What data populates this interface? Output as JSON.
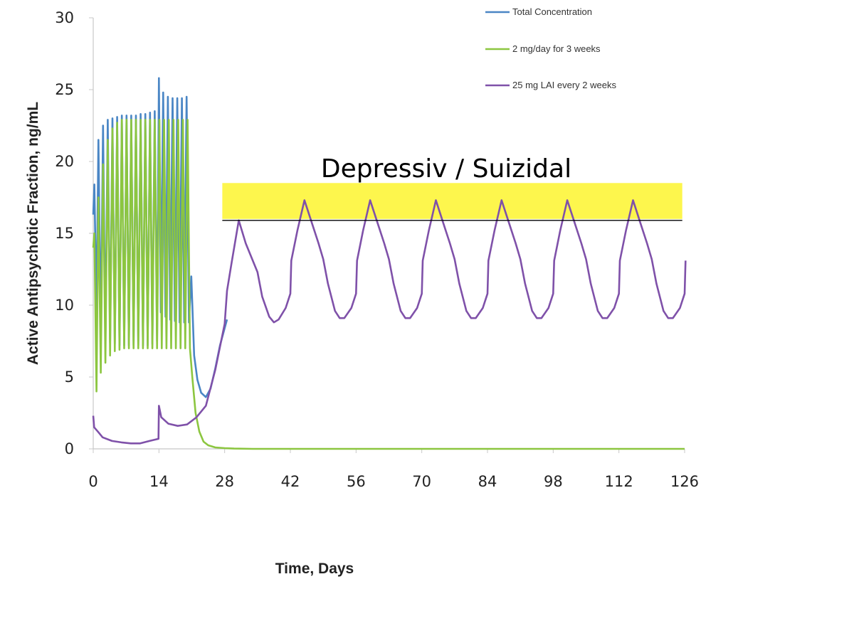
{
  "chart_data": {
    "type": "line",
    "title": "",
    "xlabel": "Time, Days",
    "ylabel": "Active Antipsychotic Fraction, ng/mL",
    "xlim": [
      0,
      126
    ],
    "ylim": [
      0,
      30
    ],
    "x_ticks": [
      0,
      14,
      28,
      42,
      56,
      70,
      84,
      98,
      112,
      126
    ],
    "y_ticks": [
      0,
      5,
      10,
      15,
      20,
      25,
      30
    ],
    "grid": false,
    "legend_position": "top-right",
    "series": [
      {
        "name": "Total Concentration",
        "color": "#4a86c5",
        "points": [
          [
            0,
            16.3
          ],
          [
            0.25,
            18.4
          ],
          [
            0.7,
            9.5
          ],
          [
            1.1,
            21.5
          ],
          [
            1.6,
            8.0
          ],
          [
            2.1,
            22.5
          ],
          [
            2.6,
            7.5
          ],
          [
            3.1,
            22.9
          ],
          [
            3.6,
            7.4
          ],
          [
            4.1,
            23.0
          ],
          [
            4.6,
            7.3
          ],
          [
            5.1,
            23.1
          ],
          [
            5.6,
            7.2
          ],
          [
            6.1,
            23.2
          ],
          [
            6.6,
            7.2
          ],
          [
            7.1,
            23.2
          ],
          [
            7.6,
            7.2
          ],
          [
            8.1,
            23.2
          ],
          [
            8.6,
            7.2
          ],
          [
            9.1,
            23.2
          ],
          [
            9.6,
            7.2
          ],
          [
            10.1,
            23.3
          ],
          [
            10.6,
            7.2
          ],
          [
            11.1,
            23.3
          ],
          [
            11.6,
            7.2
          ],
          [
            12.1,
            23.4
          ],
          [
            12.6,
            7.3
          ],
          [
            13.1,
            23.5
          ],
          [
            13.6,
            7.5
          ],
          [
            14.0,
            25.8
          ],
          [
            14.4,
            9.5
          ],
          [
            14.9,
            24.8
          ],
          [
            15.4,
            9.2
          ],
          [
            15.9,
            24.5
          ],
          [
            16.4,
            9.0
          ],
          [
            16.9,
            24.4
          ],
          [
            17.4,
            8.9
          ],
          [
            17.9,
            24.4
          ],
          [
            18.4,
            8.8
          ],
          [
            18.9,
            24.4
          ],
          [
            19.4,
            8.8
          ],
          [
            19.9,
            24.5
          ],
          [
            20.4,
            8.8
          ],
          [
            20.9,
            12.0
          ],
          [
            21.5,
            6.5
          ],
          [
            22.2,
            4.8
          ],
          [
            23.0,
            3.9
          ],
          [
            24.0,
            3.6
          ],
          [
            25.0,
            4.2
          ],
          [
            26.0,
            5.6
          ],
          [
            27.0,
            7.2
          ],
          [
            28.0,
            8.4
          ],
          [
            28.5,
            9.0
          ]
        ]
      },
      {
        "name": "2 mg/day for 3 weeks",
        "color": "#8cc640",
        "points": [
          [
            0,
            14.0
          ],
          [
            0.25,
            15.0
          ],
          [
            0.7,
            4.0
          ],
          [
            1.1,
            17.5
          ],
          [
            1.6,
            5.3
          ],
          [
            2.1,
            19.8
          ],
          [
            2.6,
            6.0
          ],
          [
            3.1,
            21.5
          ],
          [
            3.6,
            6.5
          ],
          [
            4.1,
            22.3
          ],
          [
            4.6,
            6.8
          ],
          [
            5.1,
            22.7
          ],
          [
            5.6,
            6.9
          ],
          [
            6.1,
            22.9
          ],
          [
            6.6,
            7.0
          ],
          [
            7.1,
            22.9
          ],
          [
            7.6,
            7.0
          ],
          [
            8.1,
            22.9
          ],
          [
            8.6,
            7.0
          ],
          [
            9.1,
            22.9
          ],
          [
            9.6,
            7.0
          ],
          [
            10.1,
            22.9
          ],
          [
            10.6,
            7.0
          ],
          [
            11.1,
            22.9
          ],
          [
            11.6,
            7.0
          ],
          [
            12.1,
            22.9
          ],
          [
            12.6,
            7.0
          ],
          [
            13.1,
            22.9
          ],
          [
            13.6,
            7.0
          ],
          [
            14.1,
            22.9
          ],
          [
            14.6,
            7.0
          ],
          [
            15.1,
            22.9
          ],
          [
            15.6,
            7.0
          ],
          [
            16.1,
            22.9
          ],
          [
            16.6,
            7.0
          ],
          [
            17.1,
            22.9
          ],
          [
            17.6,
            7.0
          ],
          [
            18.1,
            22.9
          ],
          [
            18.6,
            7.0
          ],
          [
            19.1,
            22.9
          ],
          [
            19.6,
            7.0
          ],
          [
            20.1,
            22.9
          ],
          [
            20.6,
            7.0
          ],
          [
            21.1,
            5.0
          ],
          [
            21.8,
            2.5
          ],
          [
            22.6,
            1.2
          ],
          [
            23.5,
            0.5
          ],
          [
            24.5,
            0.25
          ],
          [
            26.0,
            0.1
          ],
          [
            28.0,
            0.05
          ],
          [
            30.0,
            0.02
          ],
          [
            34.0,
            0
          ],
          [
            126,
            0
          ]
        ]
      },
      {
        "name": "25 mg LAI every 2 weeks",
        "color": "#7f51a9",
        "points": [
          [
            0,
            2.3
          ],
          [
            0.2,
            1.5
          ],
          [
            1,
            1.2
          ],
          [
            2,
            0.8
          ],
          [
            4,
            0.55
          ],
          [
            6,
            0.45
          ],
          [
            8,
            0.38
          ],
          [
            10,
            0.38
          ],
          [
            12,
            0.55
          ],
          [
            13.9,
            0.7
          ],
          [
            14.0,
            3.0
          ],
          [
            14.5,
            2.2
          ],
          [
            16,
            1.75
          ],
          [
            18,
            1.6
          ],
          [
            20,
            1.7
          ],
          [
            22,
            2.2
          ],
          [
            24,
            3.0
          ],
          [
            26,
            5.5
          ],
          [
            28,
            8.7
          ],
          [
            28.5,
            11.0
          ],
          [
            29.5,
            13.0
          ],
          [
            31.0,
            15.9
          ],
          [
            32.5,
            14.3
          ],
          [
            34.0,
            13.1
          ],
          [
            35.0,
            12.3
          ],
          [
            36.0,
            10.6
          ],
          [
            37.5,
            9.2
          ],
          [
            38.5,
            8.8
          ],
          [
            39.5,
            9.0
          ],
          [
            41.0,
            9.8
          ],
          [
            42.0,
            10.8
          ],
          [
            42.2,
            13.1
          ],
          [
            43.5,
            15.2
          ],
          [
            45.0,
            17.3
          ],
          [
            46.5,
            15.8
          ],
          [
            48.0,
            14.3
          ],
          [
            49.0,
            13.2
          ],
          [
            50.0,
            11.5
          ],
          [
            51.5,
            9.6
          ],
          [
            52.5,
            9.1
          ],
          [
            53.5,
            9.1
          ],
          [
            55.0,
            9.8
          ],
          [
            56.0,
            10.8
          ],
          [
            56.2,
            13.1
          ],
          [
            57.5,
            15.2
          ],
          [
            59.0,
            17.3
          ],
          [
            60.5,
            15.8
          ],
          [
            62.0,
            14.3
          ],
          [
            63.0,
            13.2
          ],
          [
            64.0,
            11.5
          ],
          [
            65.5,
            9.6
          ],
          [
            66.5,
            9.1
          ],
          [
            67.5,
            9.1
          ],
          [
            69.0,
            9.8
          ],
          [
            70.0,
            10.8
          ],
          [
            70.2,
            13.1
          ],
          [
            71.5,
            15.2
          ],
          [
            73.0,
            17.3
          ],
          [
            74.5,
            15.8
          ],
          [
            76.0,
            14.3
          ],
          [
            77.0,
            13.2
          ],
          [
            78.0,
            11.5
          ],
          [
            79.5,
            9.6
          ],
          [
            80.5,
            9.1
          ],
          [
            81.5,
            9.1
          ],
          [
            83.0,
            9.8
          ],
          [
            84.0,
            10.8
          ],
          [
            84.2,
            13.1
          ],
          [
            85.5,
            15.2
          ],
          [
            87.0,
            17.3
          ],
          [
            88.5,
            15.8
          ],
          [
            90.0,
            14.3
          ],
          [
            91.0,
            13.2
          ],
          [
            92.0,
            11.5
          ],
          [
            93.5,
            9.6
          ],
          [
            94.5,
            9.1
          ],
          [
            95.5,
            9.1
          ],
          [
            97.0,
            9.8
          ],
          [
            98.0,
            10.8
          ],
          [
            98.2,
            13.1
          ],
          [
            99.5,
            15.2
          ],
          [
            101.0,
            17.3
          ],
          [
            102.5,
            15.8
          ],
          [
            104.0,
            14.3
          ],
          [
            105.0,
            13.2
          ],
          [
            106.0,
            11.5
          ],
          [
            107.5,
            9.6
          ],
          [
            108.5,
            9.1
          ],
          [
            109.5,
            9.1
          ],
          [
            111.0,
            9.8
          ],
          [
            112.0,
            10.8
          ],
          [
            112.2,
            13.1
          ],
          [
            113.5,
            15.2
          ],
          [
            115.0,
            17.3
          ],
          [
            116.5,
            15.8
          ],
          [
            118.0,
            14.3
          ],
          [
            119.0,
            13.2
          ],
          [
            120.0,
            11.5
          ],
          [
            121.5,
            9.6
          ],
          [
            122.5,
            9.1
          ],
          [
            123.5,
            9.1
          ],
          [
            125.0,
            9.8
          ],
          [
            126.0,
            10.8
          ],
          [
            126.2,
            13.1
          ]
        ]
      }
    ],
    "annotation": {
      "label": "Depressiv / Suizidal",
      "band": {
        "x0": 27.5,
        "x1": 125.5,
        "y0": 16.0,
        "y1": 18.5,
        "color": "#fdf64d"
      },
      "threshold_line": {
        "y": 15.9,
        "x0": 27.5,
        "x1": 125.5,
        "color": "#000000"
      }
    }
  }
}
